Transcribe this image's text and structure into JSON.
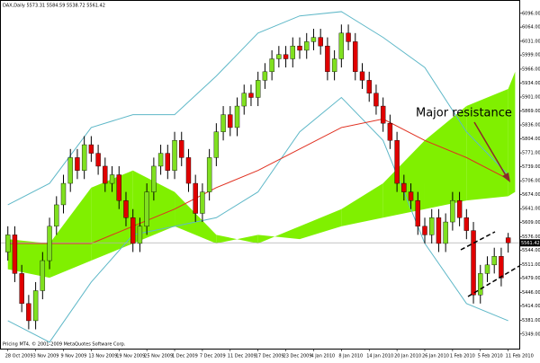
{
  "chart_data": {
    "type": "candlestick",
    "title": "DAX,Daily 5573.31 5584.59 5538.72 5561.42",
    "annotation": "Major resistance",
    "footer": "Pricing MT4, © 2001-2009 MetaQuotes Software Corp.",
    "categories": [
      "28 Oct 2009",
      null,
      null,
      null,
      "3 Nov 2009",
      null,
      null,
      null,
      "9 Nov 2009",
      null,
      null,
      null,
      "13 Nov 2009",
      null,
      null,
      null,
      "19 Nov 2009",
      null,
      null,
      null,
      "25 Nov 2009",
      null,
      null,
      null,
      "1 Dec 2009",
      null,
      null,
      null,
      "7 Dec 2009",
      null,
      null,
      null,
      "11 Dec 2009",
      null,
      null,
      null,
      "17 Dec 2009",
      null,
      null,
      null,
      "23 Dec 2009",
      null,
      null,
      null,
      "4 Jan 2010",
      null,
      null,
      null,
      "8 Jan 2010",
      null,
      null,
      null,
      "14 Jan 2010",
      null,
      null,
      null,
      "20 Jan 2010",
      null,
      null,
      null,
      "26 Jan 2010",
      null,
      null,
      null,
      "1 Feb 2010",
      null,
      null,
      null,
      "5 Feb 2010",
      null,
      null,
      null,
      "11 Feb 2010"
    ],
    "open": [
      5540,
      5580,
      5490,
      5420,
      5380,
      5450,
      5520,
      5600,
      5650,
      5700,
      5760,
      5730,
      5790,
      5770,
      5740,
      5700,
      5720,
      5660,
      5620,
      5560,
      5600,
      5680,
      5740,
      5770,
      5730,
      5800,
      5760,
      5700,
      5630,
      5680,
      5760,
      5820,
      5860,
      5830,
      5880,
      5910,
      5900,
      5940,
      5960,
      5990,
      6000,
      5990,
      6020,
      6010,
      6030,
      6040,
      6020,
      5960,
      5990,
      6050,
      6030,
      5960,
      5940,
      5910,
      5880,
      5840,
      5800,
      5700,
      5680,
      5660,
      5600,
      5580,
      5620,
      5560,
      5610,
      5660,
      5620,
      5590,
      5440,
      5490,
      5510,
      5530,
      5573.31
    ],
    "high": [
      5600,
      5600,
      5510,
      5440,
      5470,
      5540,
      5620,
      5670,
      5720,
      5780,
      5780,
      5810,
      5810,
      5790,
      5760,
      5740,
      5740,
      5680,
      5640,
      5620,
      5700,
      5760,
      5790,
      5790,
      5820,
      5820,
      5780,
      5720,
      5700,
      5780,
      5840,
      5880,
      5880,
      5900,
      5930,
      5930,
      5960,
      5980,
      6010,
      6020,
      6020,
      6040,
      6040,
      6050,
      6060,
      6060,
      6040,
      6010,
      6070,
      6070,
      6050,
      5980,
      5960,
      5930,
      5900,
      5860,
      5820,
      5720,
      5700,
      5680,
      5620,
      5640,
      5640,
      5630,
      5680,
      5680,
      5640,
      5610,
      5510,
      5530,
      5550,
      5550,
      5584.59
    ],
    "low": [
      5520,
      5470,
      5400,
      5360,
      5360,
      5430,
      5500,
      5580,
      5630,
      5680,
      5710,
      5710,
      5750,
      5720,
      5680,
      5680,
      5640,
      5600,
      5540,
      5540,
      5580,
      5660,
      5720,
      5710,
      5710,
      5740,
      5680,
      5610,
      5610,
      5660,
      5740,
      5800,
      5810,
      5810,
      5860,
      5880,
      5880,
      5920,
      5940,
      5970,
      5970,
      5970,
      5990,
      5990,
      6010,
      6000,
      5940,
      5940,
      5970,
      6010,
      5940,
      5920,
      5890,
      5860,
      5820,
      5780,
      5680,
      5660,
      5640,
      5580,
      5560,
      5560,
      5540,
      5540,
      5590,
      5600,
      5570,
      5420,
      5420,
      5470,
      5490,
      5460,
      5538.72
    ],
    "close": [
      5580,
      5490,
      5420,
      5380,
      5450,
      5520,
      5600,
      5650,
      5700,
      5760,
      5730,
      5790,
      5770,
      5740,
      5700,
      5720,
      5660,
      5620,
      5560,
      5600,
      5680,
      5740,
      5770,
      5730,
      5800,
      5760,
      5700,
      5630,
      5680,
      5760,
      5820,
      5860,
      5830,
      5880,
      5910,
      5900,
      5940,
      5960,
      5990,
      6000,
      5990,
      6020,
      6010,
      6030,
      6040,
      6020,
      5960,
      5990,
      6050,
      6030,
      5960,
      5940,
      5910,
      5880,
      5840,
      5800,
      5700,
      5680,
      5660,
      5600,
      5580,
      5620,
      5560,
      5610,
      5660,
      5620,
      5590,
      5440,
      5490,
      5510,
      5530,
      5480,
      5561.42
    ],
    "up_color": "#80e020",
    "down_color": "#e00000",
    "lines": [
      {
        "color": "#5fb8c8",
        "x": [
          0,
          6,
          12,
          18,
          24,
          30,
          36,
          42,
          48,
          54,
          60,
          66,
          72
        ],
        "values": [
          5650,
          5700,
          5830,
          5860,
          5860,
          5950,
          6050,
          6090,
          6100,
          6040,
          5970,
          5820,
          5720
        ]
      },
      {
        "color": "#5fb8c8",
        "x": [
          0,
          6,
          12,
          18,
          24,
          30,
          36,
          42,
          48,
          54,
          60,
          66,
          72
        ],
        "values": [
          5380,
          5330,
          5470,
          5580,
          5600,
          5620,
          5680,
          5820,
          5900,
          5800,
          5560,
          5420,
          5380
        ]
      },
      {
        "color": "#e03020",
        "x": [
          0,
          6,
          12,
          18,
          24,
          30,
          36,
          42,
          48,
          54,
          60,
          66,
          72
        ],
        "values": [
          5560,
          5560,
          5560,
          5600,
          5640,
          5690,
          5730,
          5780,
          5830,
          5850,
          5800,
          5760,
          5710
        ]
      }
    ],
    "cloud": {
      "x": [
        0,
        6,
        12,
        18,
        24,
        30,
        36,
        42,
        48,
        54,
        60,
        66,
        72,
        73
      ],
      "span_a": [
        5570,
        5560,
        5690,
        5730,
        5680,
        5580,
        5560,
        5600,
        5640,
        5700,
        5800,
        5880,
        5920,
        5960
      ],
      "span_b": [
        5500,
        5480,
        5520,
        5560,
        5600,
        5560,
        5580,
        5570,
        5600,
        5620,
        5640,
        5660,
        5670,
        5680
      ],
      "color_up": "#80f000",
      "color_down": "#f5c8a8"
    },
    "xlim": [
      -1,
      73.6
    ],
    "ylim": [
      5315,
      6125
    ],
    "yticks": [
      {
        "value": 6096,
        "label": "6096.00"
      },
      {
        "value": 6064,
        "label": "6064.00"
      },
      {
        "value": 6031,
        "label": "6031.00"
      },
      {
        "value": 5999,
        "label": "5999.00"
      },
      {
        "value": 5966,
        "label": "5966.00"
      },
      {
        "value": 5934,
        "label": "5934.00"
      },
      {
        "value": 5901,
        "label": "5901.00"
      },
      {
        "value": 5869,
        "label": "5869.00"
      },
      {
        "value": 5836,
        "label": "5836.00"
      },
      {
        "value": 5804,
        "label": "5804.00"
      },
      {
        "value": 5771,
        "label": "5771.00"
      },
      {
        "value": 5739,
        "label": "5739.00"
      },
      {
        "value": 5706,
        "label": "5706.00"
      },
      {
        "value": 5674,
        "label": "5674.00"
      },
      {
        "value": 5641,
        "label": "5641.00"
      },
      {
        "value": 5609,
        "label": "5609.00"
      },
      {
        "value": 5576,
        "label": "5576.00"
      },
      {
        "value": 5544,
        "label": "5544.00"
      },
      {
        "value": 5511,
        "label": "5511.00"
      },
      {
        "value": 5479,
        "label": "5479.00"
      },
      {
        "value": 5446,
        "label": "5446.00"
      },
      {
        "value": 5414,
        "label": "5414.00"
      },
      {
        "value": 5381,
        "label": "5381.00"
      },
      {
        "value": 5349,
        "label": "5349.00"
      }
    ]
  }
}
